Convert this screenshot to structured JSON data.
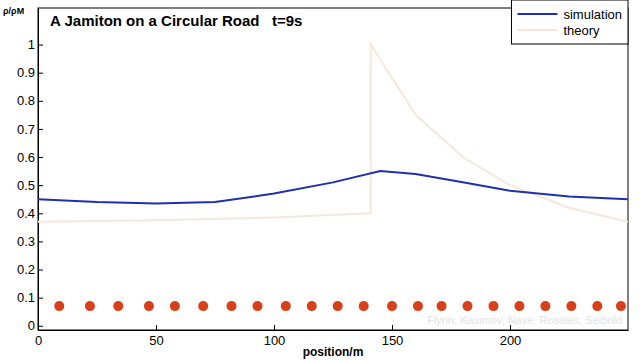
{
  "chart_data": {
    "type": "line",
    "title": "A Jamiton on a Circular Road   t=9s",
    "x_label": "position/m",
    "y_label": "ρ/ρM",
    "annotation": "Flynn, Kasimov, Nave, Rosales, Seibold",
    "xlim": [
      0,
      250
    ],
    "ylim": [
      -0.015,
      1.13
    ],
    "xticks": [
      0,
      50,
      100,
      150,
      200
    ],
    "yticks": [
      0,
      0.1,
      0.2,
      0.3,
      0.4,
      0.5,
      0.6,
      0.7,
      0.8,
      0.9,
      1
    ],
    "legend": "upper right",
    "series": [
      {
        "name": "simulation",
        "color": "#1f2fb0",
        "type": "line",
        "x": [
          0,
          25,
          50,
          75,
          100,
          125,
          145,
          160,
          180,
          200,
          225,
          250
        ],
        "values": [
          0.45,
          0.44,
          0.435,
          0.44,
          0.47,
          0.51,
          0.55,
          0.54,
          0.51,
          0.48,
          0.46,
          0.45
        ]
      },
      {
        "name": "theory",
        "color": "#f6e7da",
        "type": "line",
        "x": [
          0,
          50,
          100,
          141,
          141,
          160,
          180,
          200,
          225,
          250
        ],
        "values": [
          0.37,
          0.375,
          0.385,
          0.4,
          1.0,
          0.75,
          0.6,
          0.5,
          0.42,
          0.37
        ]
      },
      {
        "color": "#d8401a",
        "type": "scatter",
        "marker": "circle",
        "x": [
          9,
          22,
          34,
          47,
          58,
          70,
          82,
          93,
          105,
          116,
          127,
          138,
          150,
          161,
          171,
          182,
          193,
          204,
          215,
          226,
          237,
          247
        ],
        "values": [
          0.07,
          0.07,
          0.07,
          0.07,
          0.07,
          0.07,
          0.07,
          0.07,
          0.07,
          0.07,
          0.07,
          0.07,
          0.07,
          0.07,
          0.07,
          0.07,
          0.07,
          0.07,
          0.07,
          0.07,
          0.07,
          0.07
        ]
      }
    ]
  }
}
